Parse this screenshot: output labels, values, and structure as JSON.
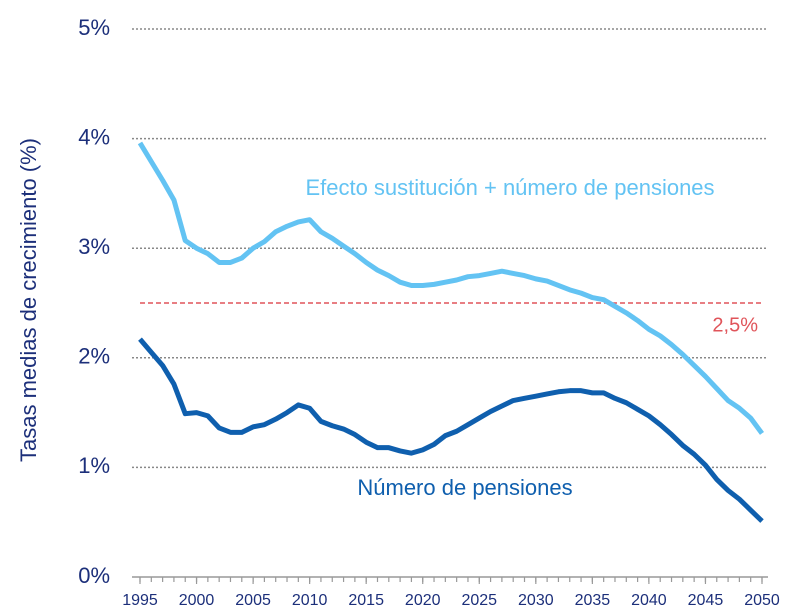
{
  "chart_data": {
    "type": "line",
    "y_label": "Tasas medias de crecimiento (%)",
    "x": [
      1995,
      1996,
      1997,
      1998,
      1999,
      2000,
      2001,
      2002,
      2003,
      2004,
      2005,
      2006,
      2007,
      2008,
      2009,
      2010,
      2011,
      2012,
      2013,
      2014,
      2015,
      2016,
      2017,
      2018,
      2019,
      2020,
      2021,
      2022,
      2023,
      2024,
      2025,
      2026,
      2027,
      2028,
      2029,
      2030,
      2031,
      2032,
      2033,
      2034,
      2035,
      2036,
      2037,
      2038,
      2039,
      2040,
      2041,
      2042,
      2043,
      2044,
      2045,
      2046,
      2047,
      2048,
      2049,
      2050
    ],
    "series": [
      {
        "name": "Efecto sustitución + número de pensiones",
        "color": "#63c3f3",
        "values": [
          3.96,
          3.79,
          3.62,
          3.44,
          3.07,
          3.0,
          2.95,
          2.87,
          2.87,
          2.91,
          3.0,
          3.06,
          3.15,
          3.2,
          3.24,
          3.26,
          3.15,
          3.09,
          3.02,
          2.95,
          2.87,
          2.8,
          2.75,
          2.69,
          2.66,
          2.66,
          2.67,
          2.69,
          2.71,
          2.74,
          2.75,
          2.77,
          2.79,
          2.77,
          2.75,
          2.72,
          2.7,
          2.66,
          2.62,
          2.59,
          2.55,
          2.53,
          2.47,
          2.41,
          2.34,
          2.26,
          2.2,
          2.12,
          2.03,
          1.93,
          1.83,
          1.72,
          1.61,
          1.54,
          1.45,
          1.31
        ]
      },
      {
        "name": "Número de pensiones",
        "color": "#0f5fae",
        "values": [
          2.17,
          2.05,
          1.93,
          1.76,
          1.49,
          1.5,
          1.47,
          1.36,
          1.32,
          1.32,
          1.37,
          1.39,
          1.44,
          1.5,
          1.57,
          1.54,
          1.42,
          1.38,
          1.35,
          1.3,
          1.23,
          1.18,
          1.18,
          1.15,
          1.13,
          1.16,
          1.21,
          1.29,
          1.33,
          1.39,
          1.45,
          1.51,
          1.56,
          1.61,
          1.63,
          1.65,
          1.67,
          1.69,
          1.7,
          1.7,
          1.68,
          1.68,
          1.63,
          1.59,
          1.53,
          1.47,
          1.39,
          1.3,
          1.2,
          1.12,
          1.02,
          0.89,
          0.79,
          0.71,
          0.61,
          0.51
        ]
      }
    ],
    "reference_line": {
      "value": 2.5,
      "label": "2,5%",
      "color": "#e0545a"
    },
    "xlim": [
      1995,
      2050
    ],
    "xticks": [
      1995,
      2000,
      2005,
      2010,
      2015,
      2020,
      2025,
      2030,
      2035,
      2040,
      2045,
      2050
    ],
    "ylim": [
      0,
      5
    ],
    "yticks": [
      {
        "value": 0,
        "label": "0%"
      },
      {
        "value": 1,
        "label": "1%"
      },
      {
        "value": 2,
        "label": "2%"
      },
      {
        "value": 3,
        "label": "3%"
      },
      {
        "value": 4,
        "label": "4%"
      },
      {
        "value": 5,
        "label": "5%"
      }
    ],
    "grid": true
  }
}
